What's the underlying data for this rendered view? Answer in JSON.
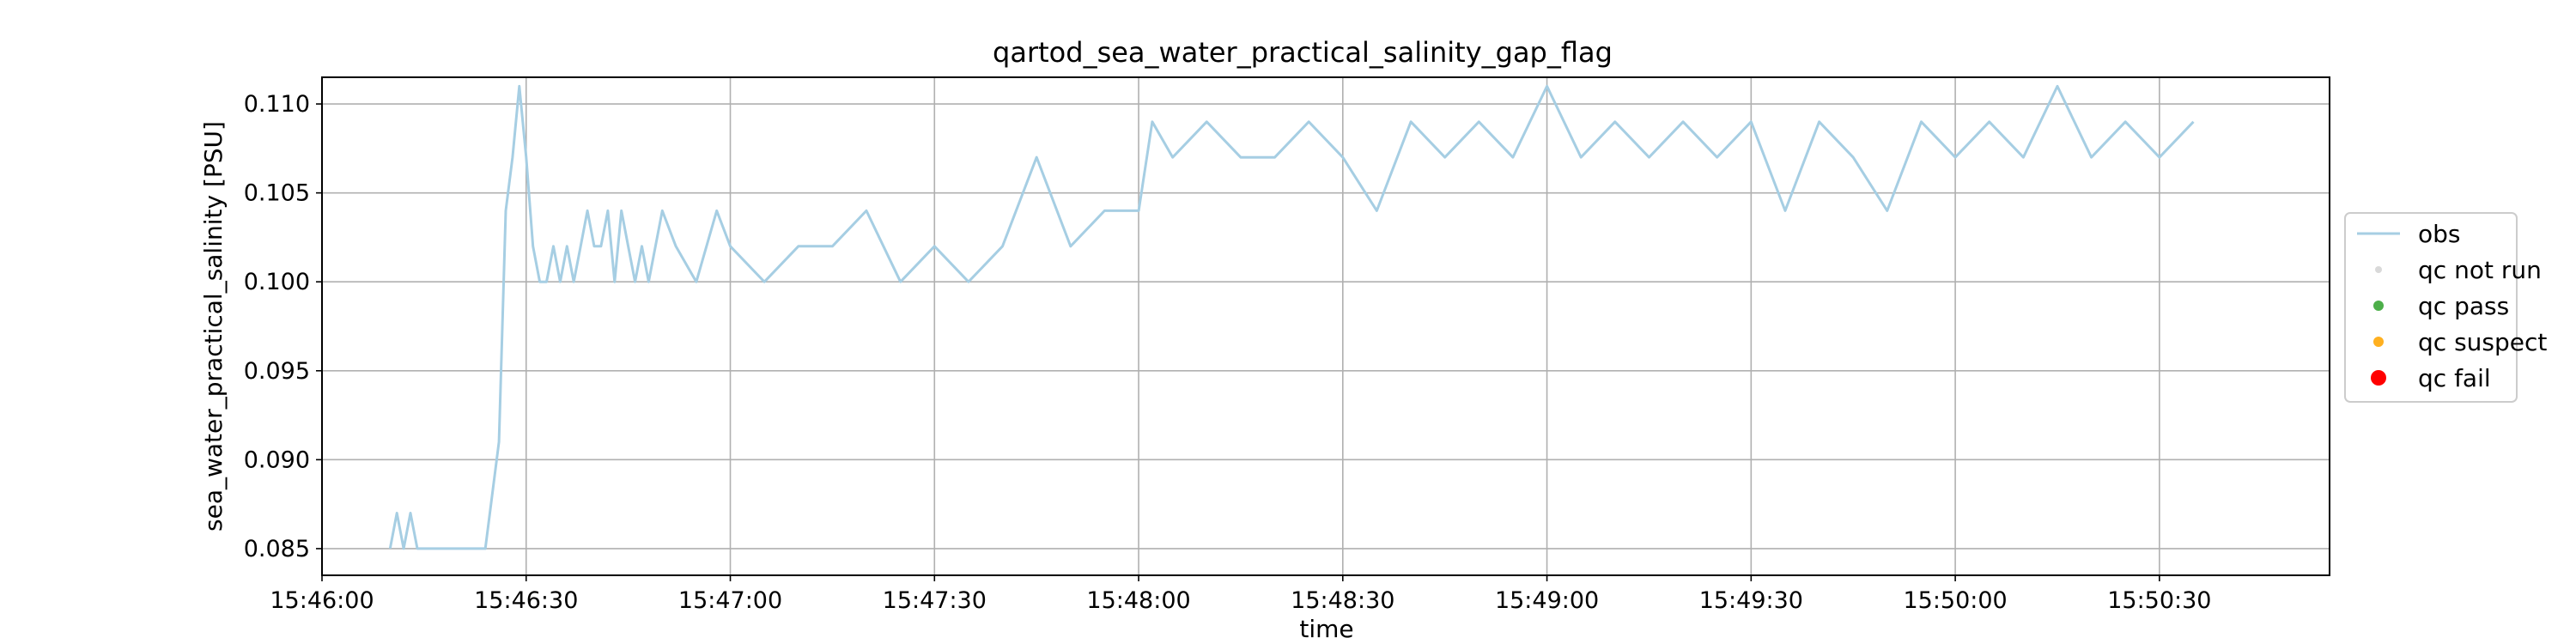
{
  "chart_data": {
    "type": "line",
    "title": "qartod_sea_water_practical_salinity_gap_flag",
    "xlabel": "time",
    "ylabel": "sea_water_practical_salinity [PSU]",
    "xlim": [
      "15:46:00",
      "15:50:55"
    ],
    "ylim": [
      0.0835,
      0.1115
    ],
    "x_ticks": [
      "15:46:00",
      "15:46:30",
      "15:47:00",
      "15:47:30",
      "15:48:00",
      "15:48:30",
      "15:49:00",
      "15:49:30",
      "15:50:00",
      "15:50:30"
    ],
    "y_ticks": [
      "0.085",
      "0.090",
      "0.095",
      "0.100",
      "0.105",
      "0.110"
    ],
    "grid": true,
    "legend_position": "center-right outside",
    "legend": [
      {
        "label": "obs",
        "marker": "line",
        "color": "#a6cee3"
      },
      {
        "label": "qc not run",
        "marker": "dot",
        "color": "#d9d9d9"
      },
      {
        "label": "qc pass",
        "marker": "dot",
        "color": "#4daf4a"
      },
      {
        "label": "qc suspect",
        "marker": "dot",
        "color": "#ffb020"
      },
      {
        "label": "qc fail",
        "marker": "dot",
        "color": "#ff0000"
      }
    ],
    "series": [
      {
        "name": "obs",
        "color": "#a6cee3",
        "x": [
          "15:46:10",
          "15:46:11",
          "15:46:12",
          "15:46:13",
          "15:46:14",
          "15:46:20",
          "15:46:22",
          "15:46:24",
          "15:46:26",
          "15:46:27",
          "15:46:28",
          "15:46:29",
          "15:46:30",
          "15:46:31",
          "15:46:32",
          "15:46:33",
          "15:46:34",
          "15:46:35",
          "15:46:36",
          "15:46:37",
          "15:46:38",
          "15:46:39",
          "15:46:40",
          "15:46:41",
          "15:46:42",
          "15:46:43",
          "15:46:44",
          "15:46:45",
          "15:46:46",
          "15:46:47",
          "15:46:48",
          "15:46:50",
          "15:46:52",
          "15:46:55",
          "15:46:58",
          "15:47:00",
          "15:47:05",
          "15:47:10",
          "15:47:15",
          "15:47:20",
          "15:47:25",
          "15:47:30",
          "15:47:35",
          "15:47:40",
          "15:47:45",
          "15:47:50",
          "15:47:55",
          "15:48:00",
          "15:48:02",
          "15:48:05",
          "15:48:10",
          "15:48:15",
          "15:48:20",
          "15:48:25",
          "15:48:30",
          "15:48:35",
          "15:48:40",
          "15:48:45",
          "15:48:50",
          "15:48:55",
          "15:49:00",
          "15:49:05",
          "15:49:10",
          "15:49:15",
          "15:49:20",
          "15:49:25",
          "15:49:30",
          "15:49:35",
          "15:49:40",
          "15:49:45",
          "15:49:50",
          "15:49:55",
          "15:50:00",
          "15:50:05",
          "15:50:10",
          "15:50:15",
          "15:50:20",
          "15:50:25",
          "15:50:30",
          "15:50:35"
        ],
        "y": [
          0.085,
          0.087,
          0.085,
          0.087,
          0.085,
          0.085,
          0.085,
          0.085,
          0.091,
          0.104,
          0.107,
          0.111,
          0.107,
          0.102,
          0.1,
          0.1,
          0.102,
          0.1,
          0.102,
          0.1,
          0.102,
          0.104,
          0.102,
          0.102,
          0.104,
          0.1,
          0.104,
          0.102,
          0.1,
          0.102,
          0.1,
          0.104,
          0.102,
          0.1,
          0.104,
          0.102,
          0.1,
          0.102,
          0.102,
          0.104,
          0.1,
          0.102,
          0.1,
          0.102,
          0.107,
          0.102,
          0.104,
          0.104,
          0.109,
          0.107,
          0.109,
          0.107,
          0.107,
          0.109,
          0.107,
          0.104,
          0.109,
          0.107,
          0.109,
          0.107,
          0.111,
          0.107,
          0.109,
          0.107,
          0.109,
          0.107,
          0.109,
          0.104,
          0.109,
          0.107,
          0.104,
          0.109,
          0.107,
          0.109,
          0.107,
          0.111,
          0.107,
          0.109,
          0.107,
          0.109
        ]
      }
    ]
  }
}
